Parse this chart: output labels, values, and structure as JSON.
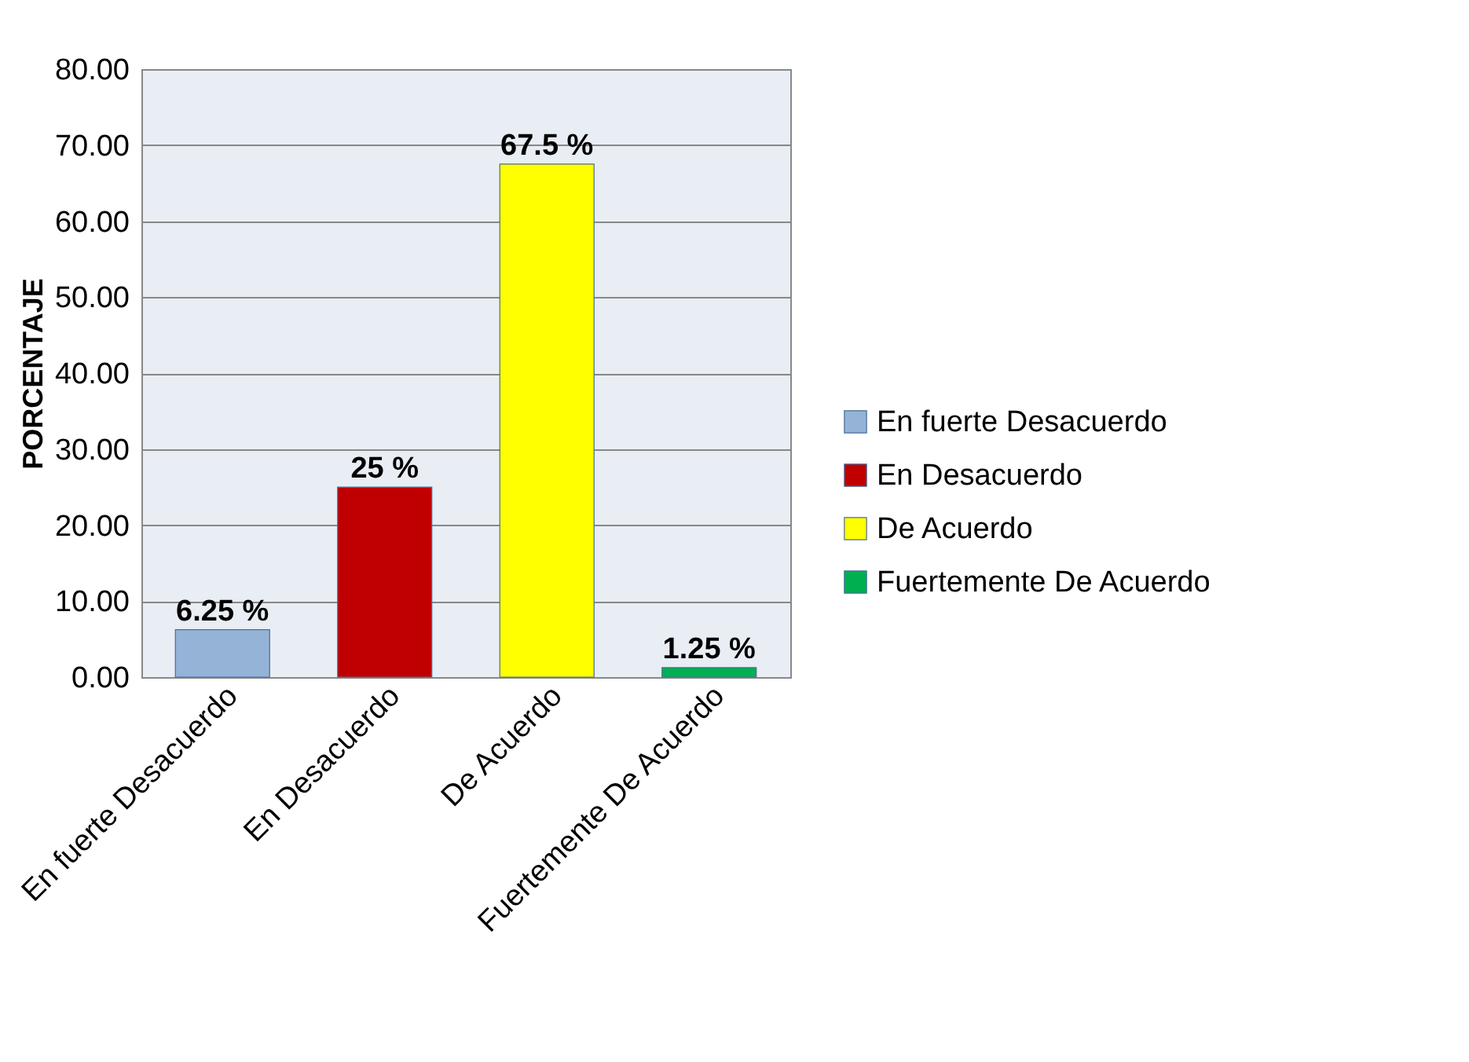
{
  "chart_data": {
    "type": "bar",
    "ylabel": "PORCENTAJE",
    "categories": [
      "En fuerte Desacuerdo",
      "En Desacuerdo",
      "De Acuerdo",
      "Fuertemente De Acuerdo"
    ],
    "series": [
      {
        "name": "En fuerte Desacuerdo",
        "color": "#95b3d7",
        "values": [
          6.25,
          null,
          null,
          null
        ],
        "value_labels": [
          "6.25 %",
          null,
          null,
          null
        ]
      },
      {
        "name": "En Desacuerdo",
        "color": "#c00000",
        "values": [
          null,
          25,
          null,
          null
        ],
        "value_labels": [
          null,
          "25 %",
          null,
          null
        ]
      },
      {
        "name": "De Acuerdo",
        "color": "#ffff00",
        "values": [
          null,
          null,
          67.5,
          null
        ],
        "value_labels": [
          null,
          null,
          "67.5 %",
          null
        ]
      },
      {
        "name": "Fuertemente De Acuerdo",
        "color": "#00b050",
        "values": [
          null,
          null,
          null,
          1.25
        ],
        "value_labels": [
          null,
          null,
          null,
          "1.25 %"
        ]
      }
    ],
    "ylim": [
      0,
      80
    ],
    "yticks": [
      {
        "value": 0,
        "label": "0.00"
      },
      {
        "value": 10,
        "label": "10.00"
      },
      {
        "value": 20,
        "label": "20.00"
      },
      {
        "value": 30,
        "label": "30.00"
      },
      {
        "value": 40,
        "label": "40.00"
      },
      {
        "value": 50,
        "label": "50.00"
      },
      {
        "value": 60,
        "label": "60.00"
      },
      {
        "value": 70,
        "label": "70.00"
      },
      {
        "value": 80,
        "label": "80.00"
      }
    ],
    "grid": "y",
    "legend": "right"
  }
}
